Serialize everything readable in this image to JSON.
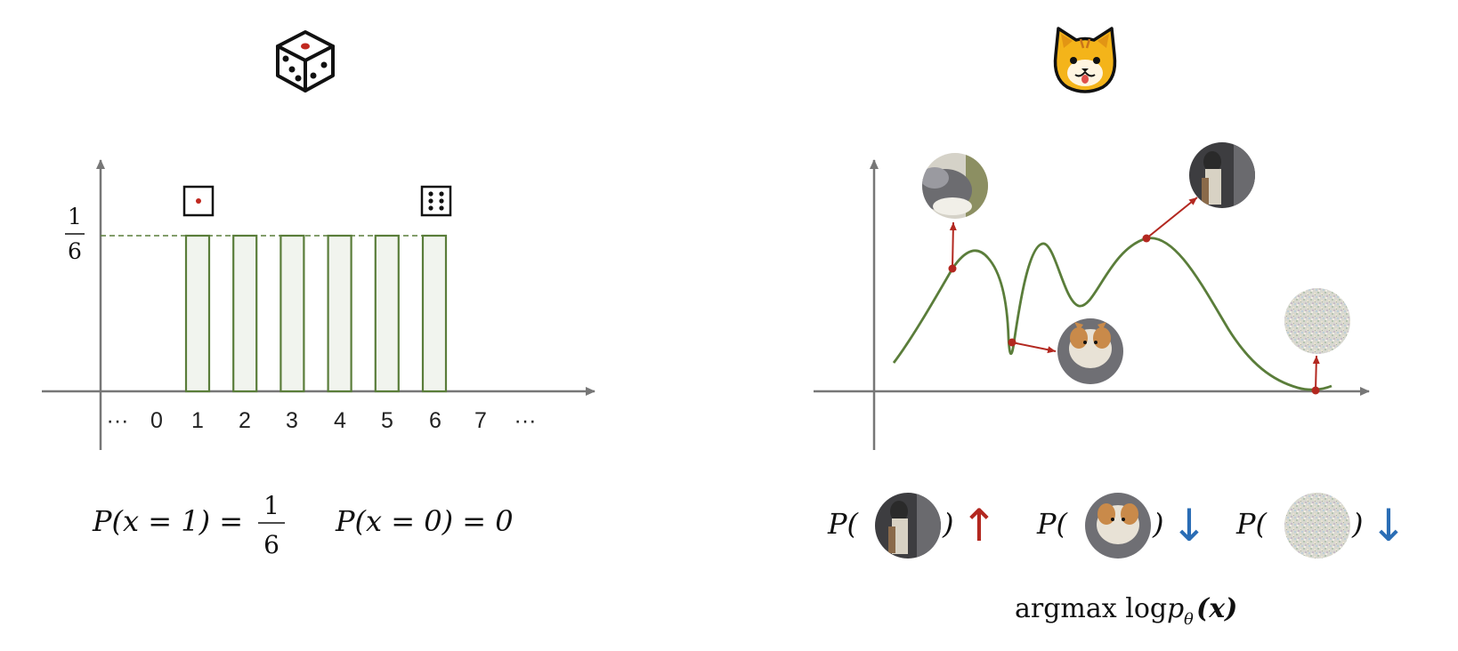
{
  "left": {
    "icon": "die-icon",
    "y_tick": {
      "numerator": "1",
      "denominator": "6"
    },
    "x_ticks": [
      "···",
      "0",
      "1",
      "2",
      "3",
      "4",
      "5",
      "6",
      "7",
      "···"
    ],
    "bar_categories": [
      "1",
      "2",
      "3",
      "4",
      "5",
      "6"
    ],
    "bar_values": [
      0.1667,
      0.1667,
      0.1667,
      0.1667,
      0.1667,
      0.1667
    ],
    "small_die_icons": [
      "die-face-one-icon",
      "die-face-six-icon"
    ],
    "formula_1": {
      "lhs": "P(x = 1) = ",
      "num": "1",
      "den": "6"
    },
    "formula_2": "P(x = 0) = 0",
    "colors": {
      "bar_stroke": "#5a7d3a",
      "bar_fill": "#f1f4ee",
      "accent": "#b32820",
      "axis": "#777777"
    }
  },
  "right": {
    "icon": "cat-face-icon",
    "images": [
      "cat-photo-icon",
      "cat-photo-icon",
      "corgi-photo-icon",
      "noise-image-icon"
    ],
    "likelihood_items": [
      {
        "prefix": "P(",
        "suffix": ")",
        "image": "cat-photo-icon",
        "arrow": "↑",
        "arrow_color": "#b32820"
      },
      {
        "prefix": "P(",
        "suffix": ")",
        "image": "corgi-photo-icon",
        "arrow": "↓",
        "arrow_color": "#2a6db5"
      },
      {
        "prefix": "P(",
        "suffix": ")",
        "image": "noise-image-icon",
        "arrow": "↓",
        "arrow_color": "#2a6db5"
      }
    ],
    "objective": {
      "text": "argmax log",
      "p": "p",
      "sub": "θ",
      "arg": "(x)"
    },
    "colors": {
      "curve": "#5a7d3a",
      "accent": "#b32820",
      "down": "#2a6db5"
    }
  }
}
